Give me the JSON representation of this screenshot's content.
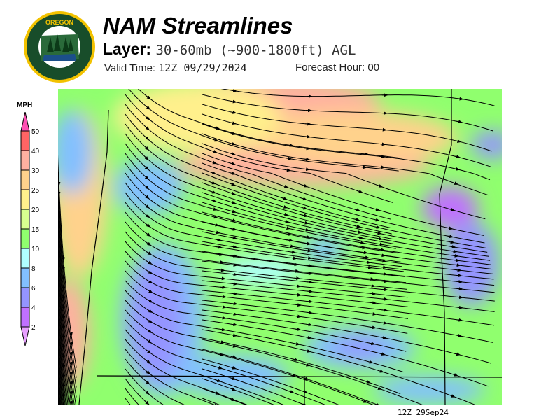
{
  "logo": {
    "text_top": "OREGON",
    "text_bottom": "DEPARTMENT OF FORESTRY"
  },
  "header": {
    "title": "NAM Streamlines",
    "layer_label": "Layer:",
    "layer_value": "30-60mb (~900-1800ft) AGL",
    "valid_label": "Valid Time:",
    "valid_value": "12Z 09/29/2024",
    "forecast_label": "Forecast Hour:",
    "forecast_value": "00"
  },
  "legend": {
    "unit": "MPH",
    "labels": [
      "50",
      "40",
      "30",
      "25",
      "20",
      "15",
      "10",
      "8",
      "6",
      "4",
      "2"
    ],
    "colors": [
      "#ff50b4",
      "#ff6464",
      "#ffb0a0",
      "#ffd28c",
      "#fff08c",
      "#d8ff90",
      "#90ff6e",
      "#b0ffff",
      "#82c0ff",
      "#9494ff",
      "#c070ff",
      "#e8a0ff"
    ]
  },
  "map": {
    "colors": {
      "background": "#90ff6e",
      "border": "#000000",
      "streamline": "#000000"
    }
  },
  "footer": {
    "stamp": "12Z 29Sep24"
  }
}
